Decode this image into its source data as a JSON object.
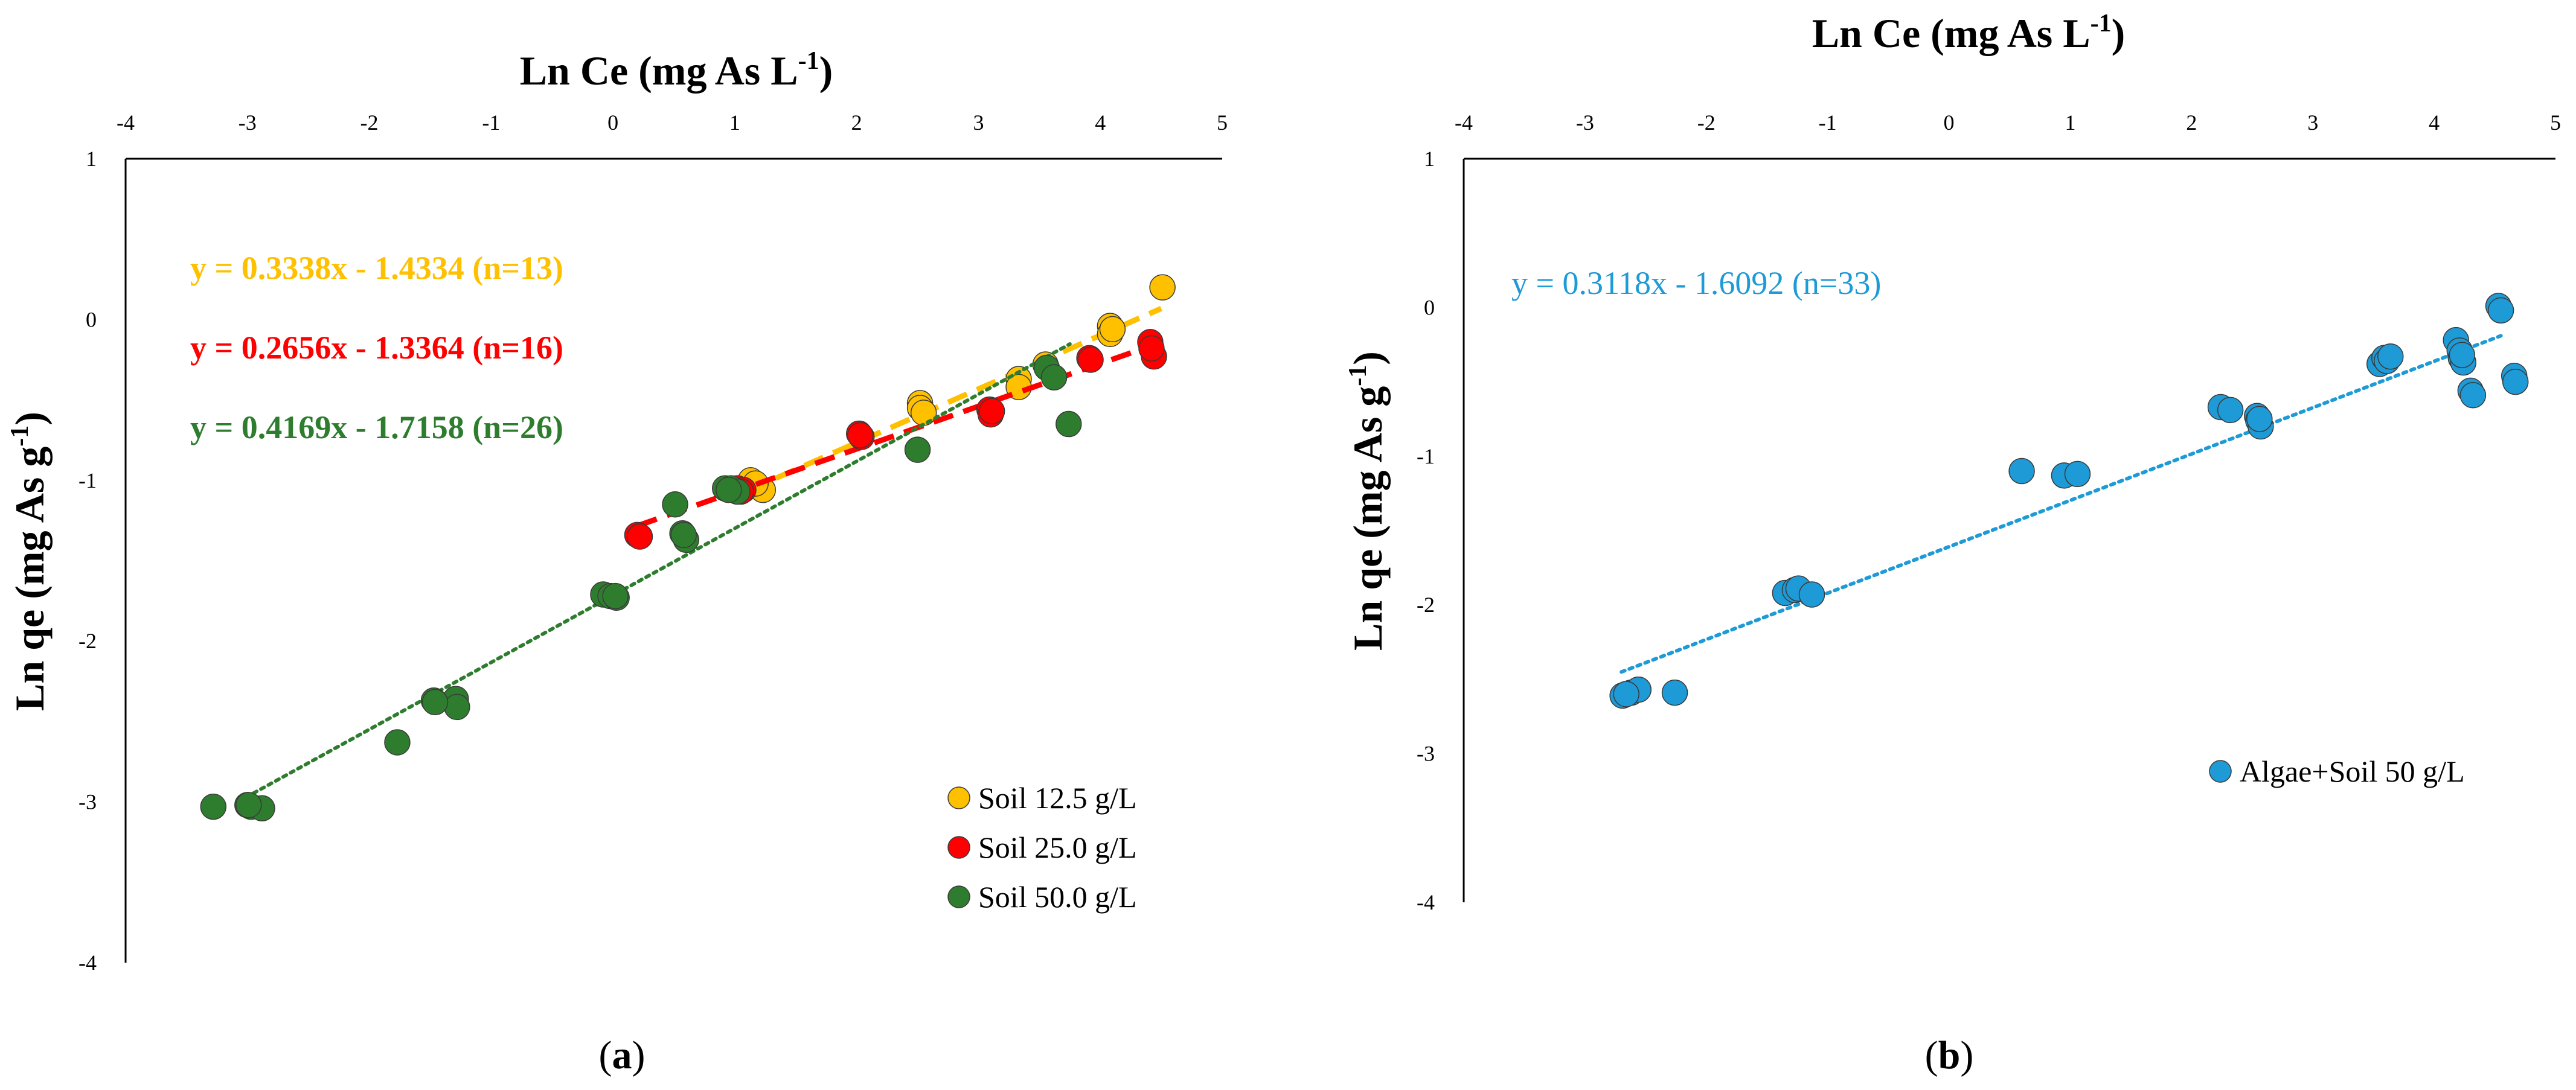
{
  "chart_data": [
    {
      "panel": "(a)",
      "panel_letter": "a",
      "type": "scatter",
      "xlabel": "Ln Ce (mg As L-1)",
      "ylabel": "Ln qe (mg As g-1)",
      "xlim": [
        -4,
        5
      ],
      "ylim": [
        -4,
        1
      ],
      "x_ticks": [
        "-4",
        "-3",
        "-2",
        "-1",
        "0",
        "1",
        "2",
        "3",
        "4",
        "5"
      ],
      "y_ticks": [
        "1",
        "0",
        "-1",
        "-2",
        "-3",
        "-4"
      ],
      "x_axis_position": "top",
      "legend_position": "bottom-right",
      "series": [
        {
          "name": "Soil 12.5 g/L",
          "color": "#ffc000",
          "trendline_style": "dashed",
          "equation": "y = 0.3338x - 1.4334 (n=13)",
          "fit": {
            "slope": 0.3338,
            "intercept": -1.4334,
            "x_range": [
              1.1,
              4.5
            ]
          },
          "points": [
            [
              1.13,
              -1.0
            ],
            [
              1.23,
              -1.06
            ],
            [
              2.52,
              -0.52
            ],
            [
              2.52,
              -0.55
            ],
            [
              3.33,
              -0.37
            ],
            [
              3.33,
              -0.42
            ],
            [
              4.08,
              -0.04
            ],
            [
              4.08,
              -0.09
            ],
            [
              4.51,
              0.2
            ],
            [
              1.17,
              -1.02
            ],
            [
              2.55,
              -0.58
            ],
            [
              3.55,
              -0.28
            ],
            [
              4.1,
              -0.06
            ]
          ]
        },
        {
          "name": "Soil 25.0 g/L",
          "color": "#ff0000",
          "trendline_style": "dashed",
          "equation": "y = 0.2656x - 1.3364 (n=16)",
          "fit": {
            "slope": 0.2656,
            "intercept": -1.3364,
            "x_range": [
              0.2,
              4.45
            ]
          },
          "points": [
            [
              0.2,
              -1.34
            ],
            [
              1.02,
              -1.05
            ],
            [
              1.07,
              -1.06
            ],
            [
              2.02,
              -0.71
            ],
            [
              2.04,
              -0.73
            ],
            [
              3.09,
              -0.56
            ],
            [
              3.1,
              -0.59
            ],
            [
              3.91,
              -0.24
            ],
            [
              4.41,
              -0.14
            ],
            [
              4.44,
              -0.23
            ],
            [
              2.03,
              -0.72
            ],
            [
              3.11,
              -0.57
            ],
            [
              1.05,
              -1.07
            ],
            [
              4.42,
              -0.18
            ],
            [
              0.22,
              -1.35
            ],
            [
              3.92,
              -0.25
            ]
          ]
        },
        {
          "name": "Soil 50.0 g/L",
          "color": "#2e7d2e",
          "trendline_style": "dotted",
          "equation": "y = 0.4169x - 1.7158 (n=26)",
          "fit": {
            "slope": 0.4169,
            "intercept": -1.7158,
            "x_range": [
              -2.95,
              3.75
            ]
          },
          "points": [
            [
              -3.28,
              -3.03
            ],
            [
              -3.0,
              -3.02
            ],
            [
              -2.97,
              -3.03
            ],
            [
              -2.88,
              -3.04
            ],
            [
              -1.77,
              -2.63
            ],
            [
              -1.47,
              -2.37
            ],
            [
              -1.29,
              -2.36
            ],
            [
              -1.28,
              -2.41
            ],
            [
              -0.08,
              -1.71
            ],
            [
              -0.02,
              -1.72
            ],
            [
              0.03,
              -1.73
            ],
            [
              0.51,
              -1.15
            ],
            [
              0.57,
              -1.33
            ],
            [
              0.6,
              -1.37
            ],
            [
              0.92,
              -1.05
            ],
            [
              0.97,
              -1.05
            ],
            [
              1.02,
              -1.07
            ],
            [
              2.5,
              -0.81
            ],
            [
              3.56,
              -0.3
            ],
            [
              3.62,
              -0.36
            ],
            [
              3.74,
              -0.65
            ],
            [
              -2.99,
              -3.02
            ],
            [
              -1.46,
              -2.38
            ],
            [
              0.02,
              -1.72
            ],
            [
              0.58,
              -1.34
            ],
            [
              0.95,
              -1.06
            ]
          ]
        }
      ]
    },
    {
      "panel": "(b)",
      "panel_letter": "b",
      "type": "scatter",
      "xlabel": "Ln Ce (mg As L-1)",
      "ylabel": "Ln qe (mg As g-1)",
      "xlim": [
        -4,
        5
      ],
      "ylim": [
        -4,
        1
      ],
      "x_ticks": [
        "-4",
        "-3",
        "-2",
        "-1",
        "0",
        "1",
        "2",
        "3",
        "4",
        "5"
      ],
      "y_ticks": [
        "1",
        "0",
        "-1",
        "-2",
        "-3",
        "-4"
      ],
      "x_axis_position": "top",
      "legend_position": "bottom-right",
      "series": [
        {
          "name": "Algae+Soil 50 g/L",
          "color": "#1e9ad6",
          "trendline_style": "dotted",
          "equation": "y = 0.3118x - 1.6092 (n=33)",
          "fit": {
            "slope": 0.3118,
            "intercept": -1.6092,
            "x_range": [
              -2.7,
              4.55
            ]
          },
          "points": [
            [
              -2.69,
              -2.61
            ],
            [
              -2.62,
              -2.59
            ],
            [
              -2.56,
              -2.57
            ],
            [
              -2.26,
              -2.59
            ],
            [
              -1.35,
              -1.92
            ],
            [
              -1.27,
              -1.9
            ],
            [
              -1.24,
              -1.89
            ],
            [
              -1.13,
              -1.93
            ],
            [
              0.6,
              -1.1
            ],
            [
              0.95,
              -1.13
            ],
            [
              1.06,
              -1.12
            ],
            [
              2.24,
              -0.67
            ],
            [
              2.32,
              -0.69
            ],
            [
              2.54,
              -0.73
            ],
            [
              2.55,
              -0.76
            ],
            [
              2.57,
              -0.8
            ],
            [
              3.55,
              -0.38
            ],
            [
              3.59,
              -0.34
            ],
            [
              3.61,
              -0.36
            ],
            [
              3.64,
              -0.33
            ],
            [
              4.18,
              -0.22
            ],
            [
              4.21,
              -0.29
            ],
            [
              4.22,
              -0.34
            ],
            [
              4.24,
              -0.37
            ],
            [
              4.3,
              -0.56
            ],
            [
              4.32,
              -0.59
            ],
            [
              4.53,
              0.01
            ],
            [
              4.55,
              -0.02
            ],
            [
              4.66,
              -0.46
            ],
            [
              4.67,
              -0.5
            ],
            [
              -2.66,
              -2.6
            ],
            [
              2.56,
              -0.75
            ],
            [
              4.23,
              -0.32
            ]
          ]
        }
      ]
    }
  ]
}
